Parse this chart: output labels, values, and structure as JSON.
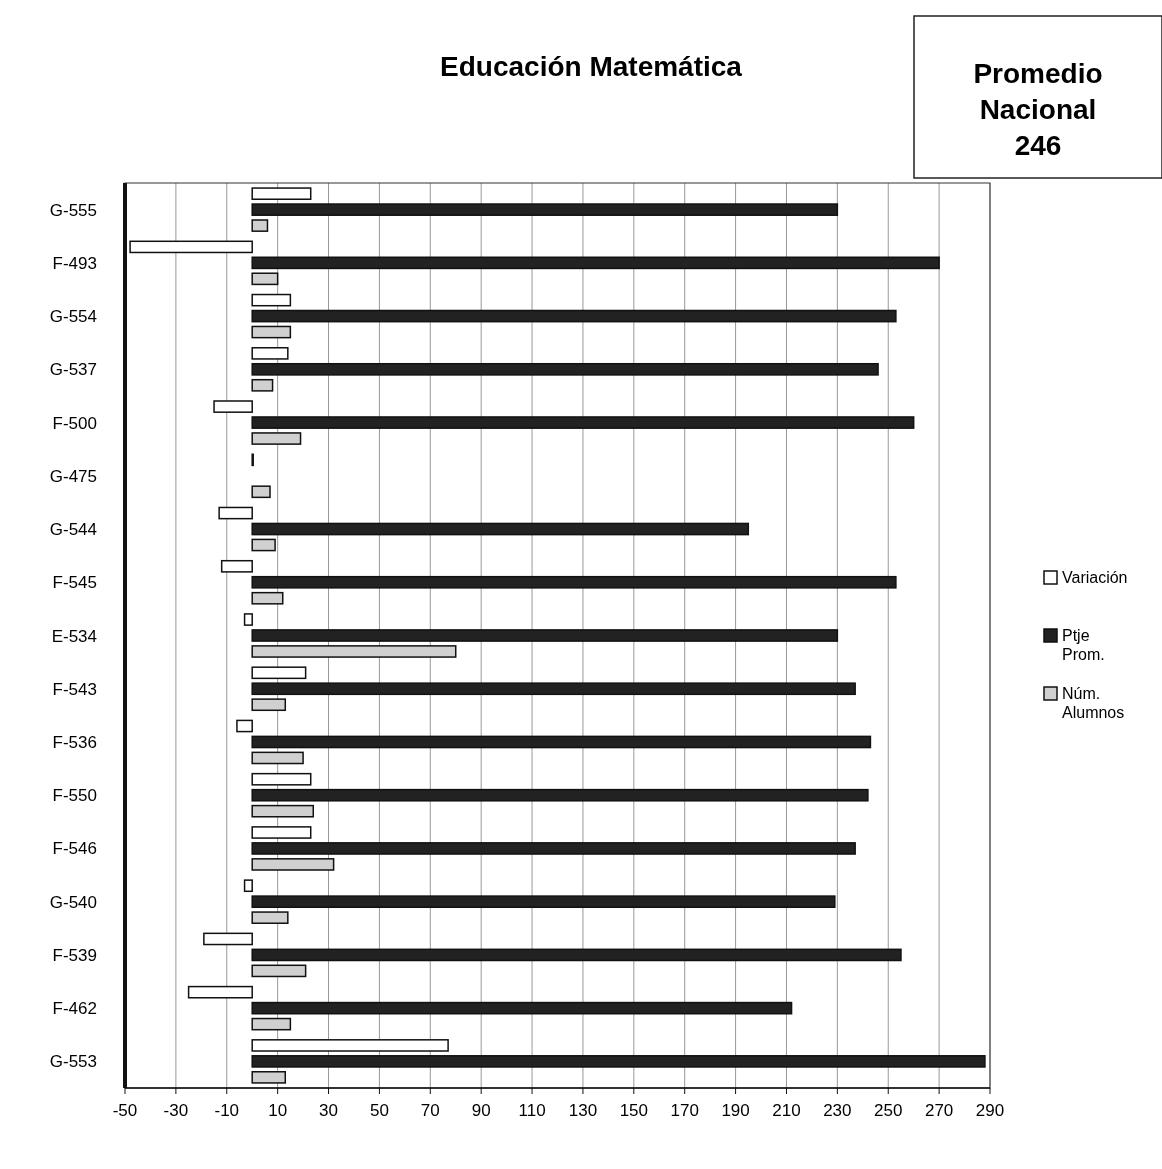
{
  "chart_data": {
    "type": "bar",
    "orientation": "horizontal",
    "title": "Educación Matemática",
    "annotations": [
      "Promedio Nacional 246"
    ],
    "categories": [
      "G-555",
      "F-493",
      "G-554",
      "G-537",
      "F-500",
      "G-475",
      "G-544",
      "F-545",
      "E-534",
      "F-543",
      "F-536",
      "F-550",
      "F-546",
      "G-540",
      "F-539",
      "F-462",
      "G-553"
    ],
    "series": [
      {
        "name": "Variación",
        "color": "#ffffff",
        "values": [
          23,
          -48,
          15,
          14,
          -15,
          0,
          -13,
          -12,
          -3,
          21,
          -6,
          23,
          23,
          -3,
          -19,
          -25,
          77
        ]
      },
      {
        "name": "Ptje Prom.",
        "color": "#222222",
        "values": [
          230,
          270,
          253,
          246,
          260,
          null,
          195,
          253,
          230,
          237,
          243,
          242,
          237,
          229,
          255,
          212,
          288
        ]
      },
      {
        "name": "Núm. Alumnos",
        "color": "#d0d0d0",
        "values": [
          6,
          10,
          15,
          8,
          19,
          7,
          9,
          12,
          80,
          13,
          20,
          24,
          32,
          14,
          21,
          15,
          13
        ]
      }
    ],
    "xlim": [
      -50,
      290
    ],
    "xticks": [
      -50,
      -30,
      -10,
      10,
      30,
      50,
      70,
      90,
      110,
      130,
      150,
      170,
      190,
      210,
      230,
      250,
      270,
      290
    ],
    "grid": "x",
    "legend": "right"
  }
}
